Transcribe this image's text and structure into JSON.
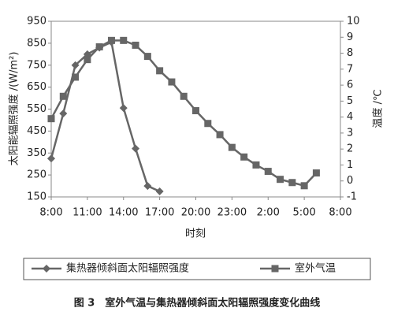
{
  "chart_data": {
    "type": "line",
    "caption": "图 3　室外气温与集热器倾斜面太阳辐照强度变化曲线",
    "x_label": "时刻",
    "y_label": "太阳能辐照强度 /(W/m²)",
    "y2_label": "温度 /℃",
    "xlim": [
      0,
      24
    ],
    "xticks": [
      {
        "value": 0,
        "label": "8:00"
      },
      {
        "value": 3,
        "label": "11:00"
      },
      {
        "value": 6,
        "label": "14:00"
      },
      {
        "value": 9,
        "label": "17:00"
      },
      {
        "value": 12,
        "label": "20:00"
      },
      {
        "value": 15,
        "label": "23:00"
      },
      {
        "value": 18,
        "label": "2:00"
      },
      {
        "value": 21,
        "label": "5:00"
      },
      {
        "value": 24,
        "label": "8:00"
      }
    ],
    "ylim": [
      150,
      950
    ],
    "yticks": [
      150,
      250,
      350,
      450,
      550,
      650,
      750,
      850,
      950
    ],
    "y2lim": [
      -1,
      10
    ],
    "y2ticks": [
      -1,
      0,
      1,
      2,
      3,
      4,
      5,
      6,
      7,
      8,
      9,
      10
    ],
    "series": [
      {
        "name": "集热器倾斜面太阳辐照强度",
        "color": "#666666",
        "marker": "diamond",
        "axis": "y",
        "x": [
          0,
          1,
          2,
          3,
          4,
          5,
          6,
          7,
          8,
          9
        ],
        "values": [
          325,
          530,
          750,
          800,
          830,
          855,
          555,
          370,
          200,
          175
        ]
      },
      {
        "name": "室外气温",
        "color": "#666666",
        "marker": "square",
        "axis": "y2",
        "x": [
          0,
          1,
          2,
          3,
          4,
          5,
          6,
          7,
          8,
          9,
          10,
          11,
          12,
          13,
          14,
          15,
          16,
          17,
          18,
          19,
          20,
          21,
          22
        ],
        "values": [
          3.9,
          5.3,
          6.5,
          7.6,
          8.4,
          8.8,
          8.8,
          8.5,
          7.8,
          6.9,
          6.2,
          5.3,
          4.4,
          3.6,
          2.9,
          2.1,
          1.5,
          1.0,
          0.6,
          0.1,
          -0.1,
          -0.3,
          0.5
        ]
      }
    ]
  }
}
